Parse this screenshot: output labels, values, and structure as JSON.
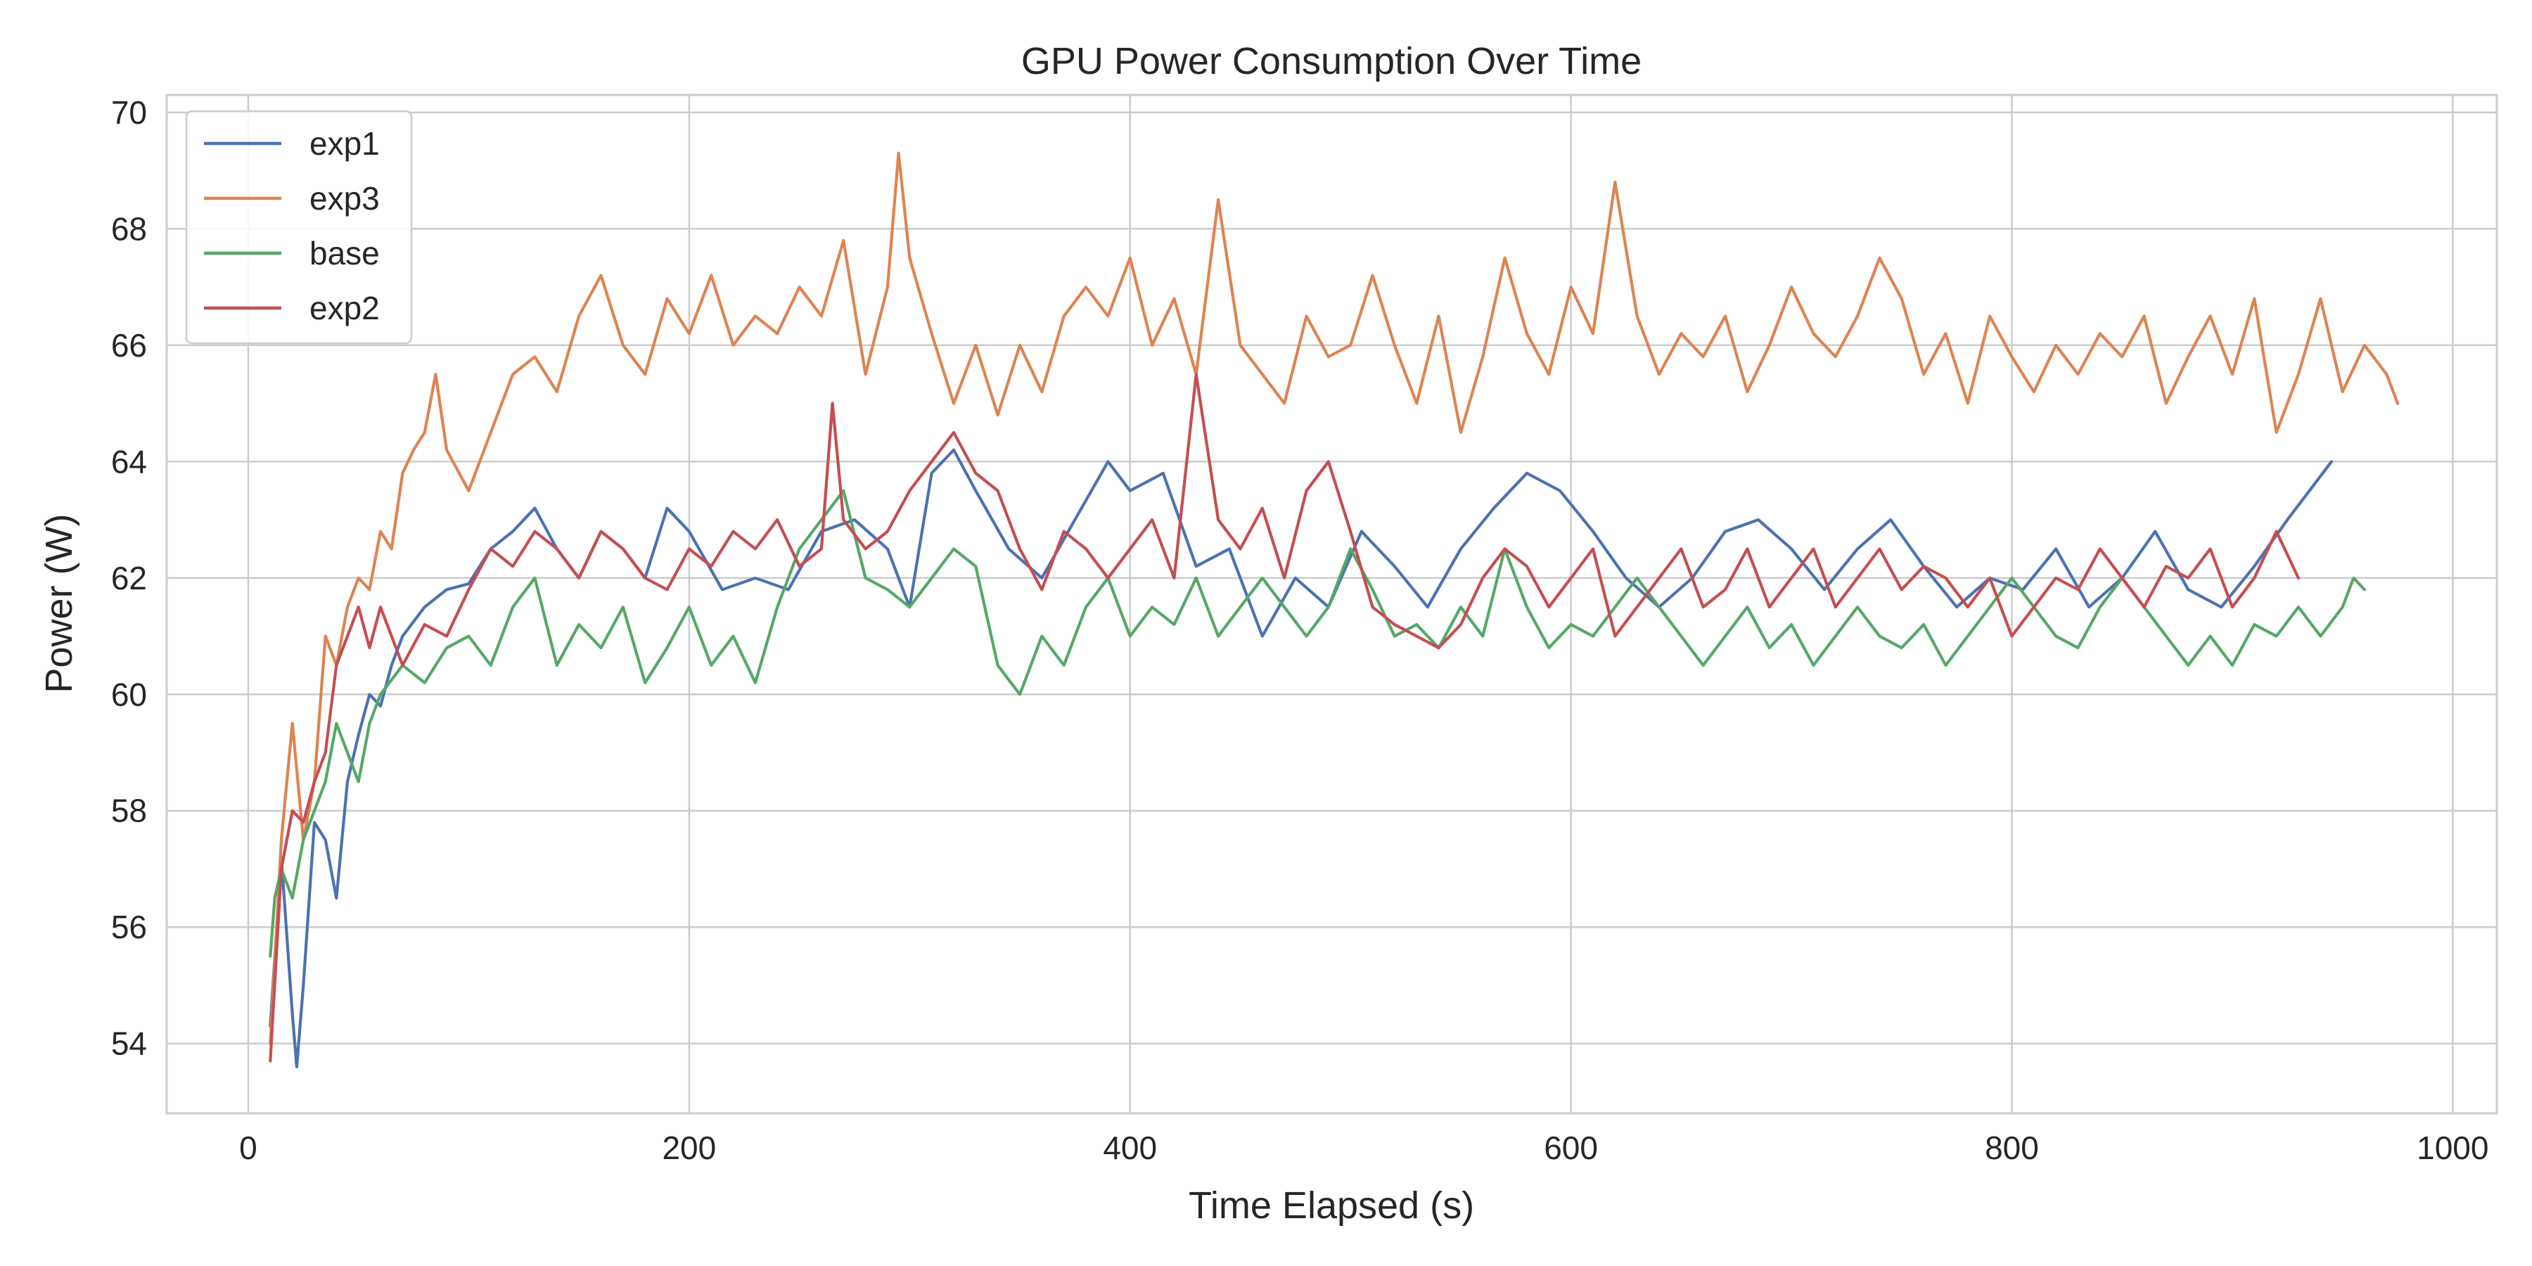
{
  "chart_data": {
    "type": "line",
    "title": "GPU Power Consumption Over Time",
    "xlabel": "Time Elapsed (s)",
    "ylabel": "Power (W)",
    "xlim": [
      -37,
      1020
    ],
    "ylim": [
      52.8,
      70.3
    ],
    "xticks": [
      0,
      200,
      400,
      600,
      800,
      1000
    ],
    "yticks": [
      54,
      56,
      58,
      60,
      62,
      64,
      66,
      68,
      70
    ],
    "xtick_labels": [
      "0",
      "200",
      "400",
      "600",
      "800",
      "1000"
    ],
    "ytick_labels": [
      "54",
      "56",
      "58",
      "60",
      "62",
      "64",
      "66",
      "68",
      "70"
    ],
    "grid": true,
    "legend_position": "top-left",
    "series": [
      {
        "name": "exp1",
        "color": "#4c72b0",
        "x": [
          10,
          15,
          20,
          22,
          25,
          30,
          35,
          40,
          45,
          50,
          55,
          60,
          65,
          70,
          80,
          90,
          100,
          110,
          120,
          130,
          140,
          150,
          160,
          170,
          180,
          190,
          200,
          215,
          230,
          245,
          260,
          275,
          290,
          300,
          310,
          320,
          330,
          345,
          360,
          375,
          390,
          400,
          415,
          430,
          445,
          460,
          475,
          490,
          505,
          520,
          535,
          550,
          565,
          580,
          595,
          610,
          625,
          640,
          655,
          670,
          685,
          700,
          715,
          730,
          745,
          760,
          775,
          790,
          805,
          820,
          835,
          850,
          865,
          880,
          895,
          910,
          925,
          935,
          945
        ],
        "y": [
          54.3,
          57.2,
          54.5,
          53.6,
          55.0,
          57.8,
          57.5,
          56.5,
          58.5,
          59.3,
          60.0,
          59.8,
          60.5,
          61.0,
          61.5,
          61.8,
          61.9,
          62.5,
          62.8,
          63.2,
          62.5,
          62.0,
          62.8,
          62.5,
          62.0,
          63.2,
          62.8,
          61.8,
          62.0,
          61.8,
          62.8,
          63.0,
          62.5,
          61.5,
          63.8,
          64.2,
          63.5,
          62.5,
          62.0,
          63.0,
          64.0,
          63.5,
          63.8,
          62.2,
          62.5,
          61.0,
          62.0,
          61.5,
          62.8,
          62.2,
          61.5,
          62.5,
          63.2,
          63.8,
          63.5,
          62.8,
          62.0,
          61.5,
          62.0,
          62.8,
          63.0,
          62.5,
          61.8,
          62.5,
          63.0,
          62.2,
          61.5,
          62.0,
          61.8,
          62.5,
          61.5,
          62.0,
          62.8,
          61.8,
          61.5,
          62.2,
          63.0,
          63.5,
          64.0
        ]
      },
      {
        "name": "exp3",
        "color": "#dd8452",
        "x": [
          10,
          15,
          20,
          25,
          30,
          35,
          40,
          45,
          50,
          55,
          60,
          65,
          70,
          75,
          80,
          85,
          90,
          100,
          110,
          120,
          130,
          140,
          150,
          160,
          170,
          180,
          190,
          200,
          210,
          220,
          230,
          240,
          250,
          260,
          270,
          280,
          290,
          295,
          300,
          310,
          320,
          330,
          340,
          350,
          360,
          370,
          380,
          390,
          400,
          410,
          420,
          430,
          440,
          450,
          460,
          470,
          480,
          490,
          500,
          510,
          520,
          530,
          540,
          550,
          560,
          570,
          580,
          590,
          600,
          610,
          620,
          630,
          640,
          650,
          660,
          670,
          680,
          690,
          700,
          710,
          720,
          730,
          740,
          750,
          760,
          770,
          780,
          790,
          800,
          810,
          820,
          830,
          840,
          850,
          860,
          870,
          880,
          890,
          900,
          910,
          920,
          930,
          940,
          950,
          960,
          970,
          975
        ],
        "y": [
          54.0,
          57.5,
          59.5,
          57.5,
          58.5,
          61.0,
          60.5,
          61.5,
          62.0,
          61.8,
          62.8,
          62.5,
          63.8,
          64.2,
          64.5,
          65.5,
          64.2,
          63.5,
          64.5,
          65.5,
          65.8,
          65.2,
          66.5,
          67.2,
          66.0,
          65.5,
          66.8,
          66.2,
          67.2,
          66.0,
          66.5,
          66.2,
          67.0,
          66.5,
          67.8,
          65.5,
          67.0,
          69.3,
          67.5,
          66.2,
          65.0,
          66.0,
          64.8,
          66.0,
          65.2,
          66.5,
          67.0,
          66.5,
          67.5,
          66.0,
          66.8,
          65.5,
          68.5,
          66.0,
          65.5,
          65.0,
          66.5,
          65.8,
          66.0,
          67.2,
          66.0,
          65.0,
          66.5,
          64.5,
          65.8,
          67.5,
          66.2,
          65.5,
          67.0,
          66.2,
          68.8,
          66.5,
          65.5,
          66.2,
          65.8,
          66.5,
          65.2,
          66.0,
          67.0,
          66.2,
          65.8,
          66.5,
          67.5,
          66.8,
          65.5,
          66.2,
          65.0,
          66.5,
          65.8,
          65.2,
          66.0,
          65.5,
          66.2,
          65.8,
          66.5,
          65.0,
          65.8,
          66.5,
          65.5,
          66.8,
          64.5,
          65.5,
          66.8,
          65.2,
          66.0,
          65.5,
          65.0
        ]
      },
      {
        "name": "base",
        "color": "#55a868",
        "x": [
          10,
          12,
          15,
          20,
          25,
          30,
          35,
          40,
          45,
          50,
          55,
          60,
          70,
          80,
          90,
          100,
          110,
          120,
          130,
          140,
          150,
          160,
          170,
          180,
          190,
          200,
          210,
          220,
          230,
          240,
          250,
          260,
          270,
          280,
          290,
          300,
          310,
          320,
          330,
          340,
          350,
          360,
          370,
          380,
          390,
          400,
          410,
          420,
          430,
          440,
          450,
          460,
          470,
          480,
          490,
          500,
          510,
          520,
          530,
          540,
          550,
          560,
          570,
          580,
          590,
          600,
          610,
          620,
          630,
          640,
          650,
          660,
          670,
          680,
          690,
          700,
          710,
          720,
          730,
          740,
          750,
          760,
          770,
          780,
          790,
          800,
          810,
          820,
          830,
          840,
          850,
          860,
          870,
          880,
          890,
          900,
          910,
          920,
          930,
          940,
          950,
          955,
          960
        ],
        "y": [
          55.5,
          56.5,
          57.0,
          56.5,
          57.5,
          58.0,
          58.5,
          59.5,
          59.0,
          58.5,
          59.5,
          60.0,
          60.5,
          60.2,
          60.8,
          61.0,
          60.5,
          61.5,
          62.0,
          60.5,
          61.2,
          60.8,
          61.5,
          60.2,
          60.8,
          61.5,
          60.5,
          61.0,
          60.2,
          61.5,
          62.5,
          63.0,
          63.5,
          62.0,
          61.8,
          61.5,
          62.0,
          62.5,
          62.2,
          60.5,
          60.0,
          61.0,
          60.5,
          61.5,
          62.0,
          61.0,
          61.5,
          61.2,
          62.0,
          61.0,
          61.5,
          62.0,
          61.5,
          61.0,
          61.5,
          62.5,
          61.8,
          61.0,
          61.2,
          60.8,
          61.5,
          61.0,
          62.5,
          61.5,
          60.8,
          61.2,
          61.0,
          61.5,
          62.0,
          61.5,
          61.0,
          60.5,
          61.0,
          61.5,
          60.8,
          61.2,
          60.5,
          61.0,
          61.5,
          61.0,
          60.8,
          61.2,
          60.5,
          61.0,
          61.5,
          62.0,
          61.5,
          61.0,
          60.8,
          61.5,
          62.0,
          61.5,
          61.0,
          60.5,
          61.0,
          60.5,
          61.2,
          61.0,
          61.5,
          61.0,
          61.5,
          62.0,
          61.8
        ]
      },
      {
        "name": "exp2",
        "color": "#c44e52",
        "x": [
          10,
          15,
          20,
          25,
          30,
          35,
          40,
          45,
          50,
          55,
          60,
          65,
          70,
          80,
          90,
          100,
          110,
          120,
          130,
          140,
          150,
          160,
          170,
          180,
          190,
          200,
          210,
          220,
          230,
          240,
          250,
          260,
          265,
          270,
          280,
          290,
          300,
          310,
          320,
          330,
          340,
          350,
          360,
          370,
          380,
          390,
          400,
          410,
          420,
          430,
          440,
          450,
          460,
          470,
          480,
          490,
          500,
          510,
          520,
          530,
          540,
          550,
          560,
          570,
          580,
          590,
          600,
          610,
          620,
          630,
          640,
          650,
          660,
          670,
          680,
          690,
          700,
          710,
          720,
          730,
          740,
          750,
          760,
          770,
          780,
          790,
          800,
          810,
          820,
          830,
          840,
          850,
          860,
          870,
          880,
          890,
          900,
          910,
          920,
          930
        ],
        "y": [
          53.7,
          57.0,
          58.0,
          57.8,
          58.5,
          59.0,
          60.5,
          61.0,
          61.5,
          60.8,
          61.5,
          61.0,
          60.5,
          61.2,
          61.0,
          61.8,
          62.5,
          62.2,
          62.8,
          62.5,
          62.0,
          62.8,
          62.5,
          62.0,
          61.8,
          62.5,
          62.2,
          62.8,
          62.5,
          63.0,
          62.2,
          62.5,
          65.0,
          63.0,
          62.5,
          62.8,
          63.5,
          64.0,
          64.5,
          63.8,
          63.5,
          62.5,
          61.8,
          62.8,
          62.5,
          62.0,
          62.5,
          63.0,
          62.0,
          65.5,
          63.0,
          62.5,
          63.2,
          62.0,
          63.5,
          64.0,
          62.8,
          61.5,
          61.2,
          61.0,
          60.8,
          61.2,
          62.0,
          62.5,
          62.2,
          61.5,
          62.0,
          62.5,
          61.0,
          61.5,
          62.0,
          62.5,
          61.5,
          61.8,
          62.5,
          61.5,
          62.0,
          62.5,
          61.5,
          62.0,
          62.5,
          61.8,
          62.2,
          62.0,
          61.5,
          62.0,
          61.0,
          61.5,
          62.0,
          61.8,
          62.5,
          62.0,
          61.5,
          62.2,
          62.0,
          62.5,
          61.5,
          62.0,
          62.8,
          62.0
        ]
      }
    ]
  }
}
